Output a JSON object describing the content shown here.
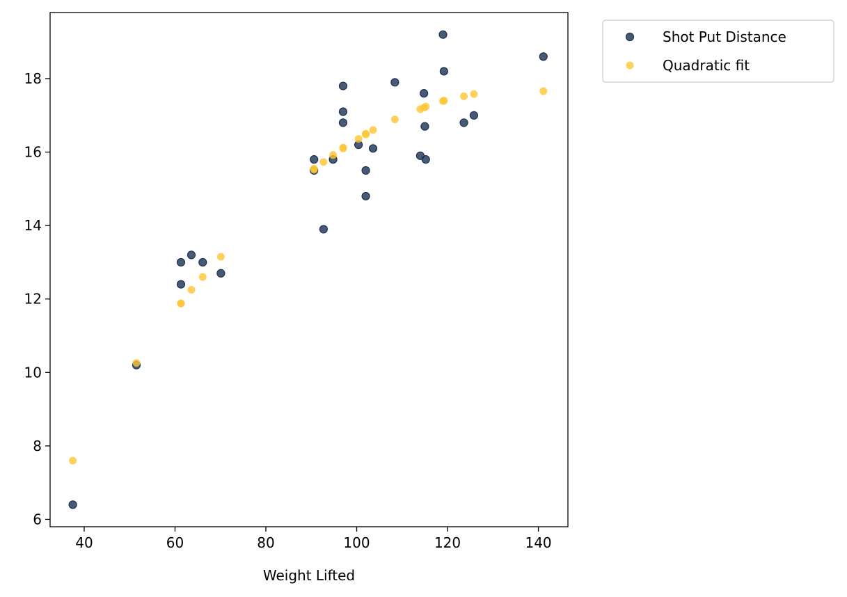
{
  "chart_data": {
    "type": "scatter",
    "title": "",
    "xlabel": "Weight Lifted",
    "ylabel": "",
    "xlim": [
      32.5,
      146.5
    ],
    "ylim": [
      5.8,
      19.8
    ],
    "xticks": [
      40,
      60,
      80,
      100,
      120,
      140
    ],
    "yticks": [
      6,
      8,
      10,
      12,
      14,
      16,
      18
    ],
    "xtick_labels": [
      "40",
      "60",
      "80",
      "100",
      "120",
      "140"
    ],
    "ytick_labels": [
      "6",
      "8",
      "10",
      "12",
      "14",
      "16",
      "18"
    ],
    "grid": false,
    "legend_position": "outside-top-right",
    "series": [
      {
        "name": "Shot Put Distance",
        "color": "#1b3152",
        "x": [
          37.5,
          51.5,
          61.3,
          61.3,
          63.6,
          66.1,
          70.1,
          90.6,
          90.6,
          92.7,
          94.8,
          97.0,
          97.0,
          97.0,
          100.4,
          102.0,
          102.0,
          103.6,
          108.4,
          114.0,
          114.8,
          115.0,
          115.2,
          119.0,
          119.2,
          123.6,
          125.8,
          141.1
        ],
        "y": [
          6.4,
          10.2,
          13.0,
          12.4,
          13.2,
          13.0,
          12.7,
          15.8,
          15.5,
          13.9,
          15.8,
          17.8,
          17.1,
          16.8,
          16.2,
          15.5,
          14.8,
          16.1,
          17.9,
          15.9,
          17.6,
          16.7,
          15.8,
          19.2,
          18.2,
          16.8,
          17.0,
          18.6
        ]
      },
      {
        "name": "Quadratic fit",
        "color": "#fdc533",
        "x": [
          37.5,
          51.5,
          61.3,
          61.3,
          63.6,
          66.1,
          70.1,
          90.6,
          90.6,
          92.7,
          94.8,
          97.0,
          97.0,
          100.4,
          102.0,
          102.0,
          103.6,
          108.4,
          114.0,
          114.8,
          115.2,
          119.0,
          119.2,
          123.6,
          125.8,
          141.1
        ],
        "y": [
          7.6,
          10.26,
          11.88,
          11.88,
          12.25,
          12.6,
          13.15,
          15.55,
          15.52,
          15.73,
          15.92,
          16.1,
          16.12,
          16.36,
          16.48,
          16.5,
          16.6,
          16.89,
          17.17,
          17.21,
          17.24,
          17.39,
          17.4,
          17.52,
          17.58,
          17.66
        ]
      }
    ]
  }
}
